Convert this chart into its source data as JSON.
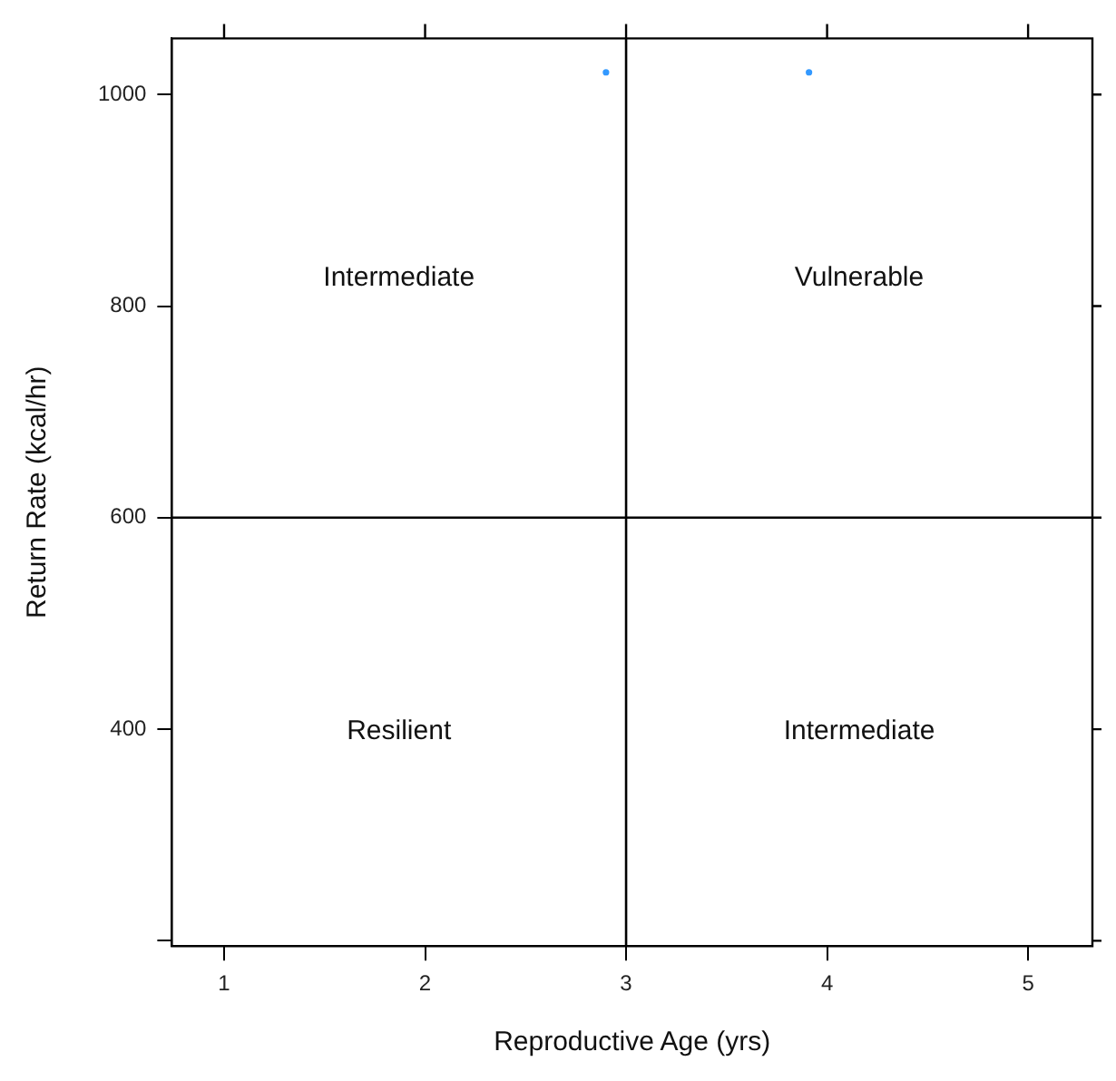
{
  "chart_data": {
    "type": "scatter",
    "xlabel": "Reproductive Age (yrs)",
    "ylabel": "Return Rate (kcal/hr)",
    "series": [
      {
        "color": "#3399ff",
        "x": [
          2.9,
          3.91
        ],
        "values": [
          1021,
          1021
        ]
      }
    ],
    "xlim": [
      0.74,
      5.32
    ],
    "xticks": [
      1,
      2,
      3,
      4,
      5
    ],
    "ylim": [
      195,
      1053
    ],
    "yticks": [
      {
        "value": 200,
        "label": null
      },
      400,
      600,
      800,
      1000
    ],
    "marker": "circle",
    "ref_lines": [
      {
        "axis": "x",
        "value": 3,
        "color": "#000000"
      },
      {
        "axis": "y",
        "value": 600,
        "color": "#000000"
      }
    ],
    "annotations": [
      "Intermediate",
      "Vulnerable",
      "Resilient",
      "Intermediate"
    ]
  }
}
